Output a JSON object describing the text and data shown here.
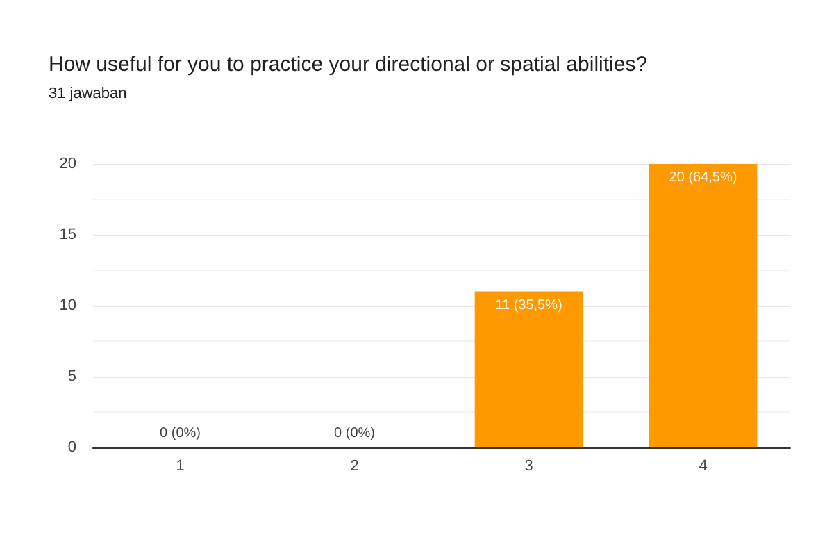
{
  "chart_data": {
    "type": "bar",
    "title": "How useful for you to practice your directional or spatial abilities?",
    "subtitle": "31 jawaban",
    "categories": [
      "1",
      "2",
      "3",
      "4"
    ],
    "values": [
      0,
      0,
      11,
      20
    ],
    "value_labels": [
      "0 (0%)",
      "0 (0%)",
      "11 (35,5%)",
      "20 (64,5%)"
    ],
    "color": "#ff9900",
    "ylim": [
      0,
      20
    ],
    "yticks": [
      0,
      5,
      10,
      15,
      20
    ],
    "grid": "y"
  }
}
